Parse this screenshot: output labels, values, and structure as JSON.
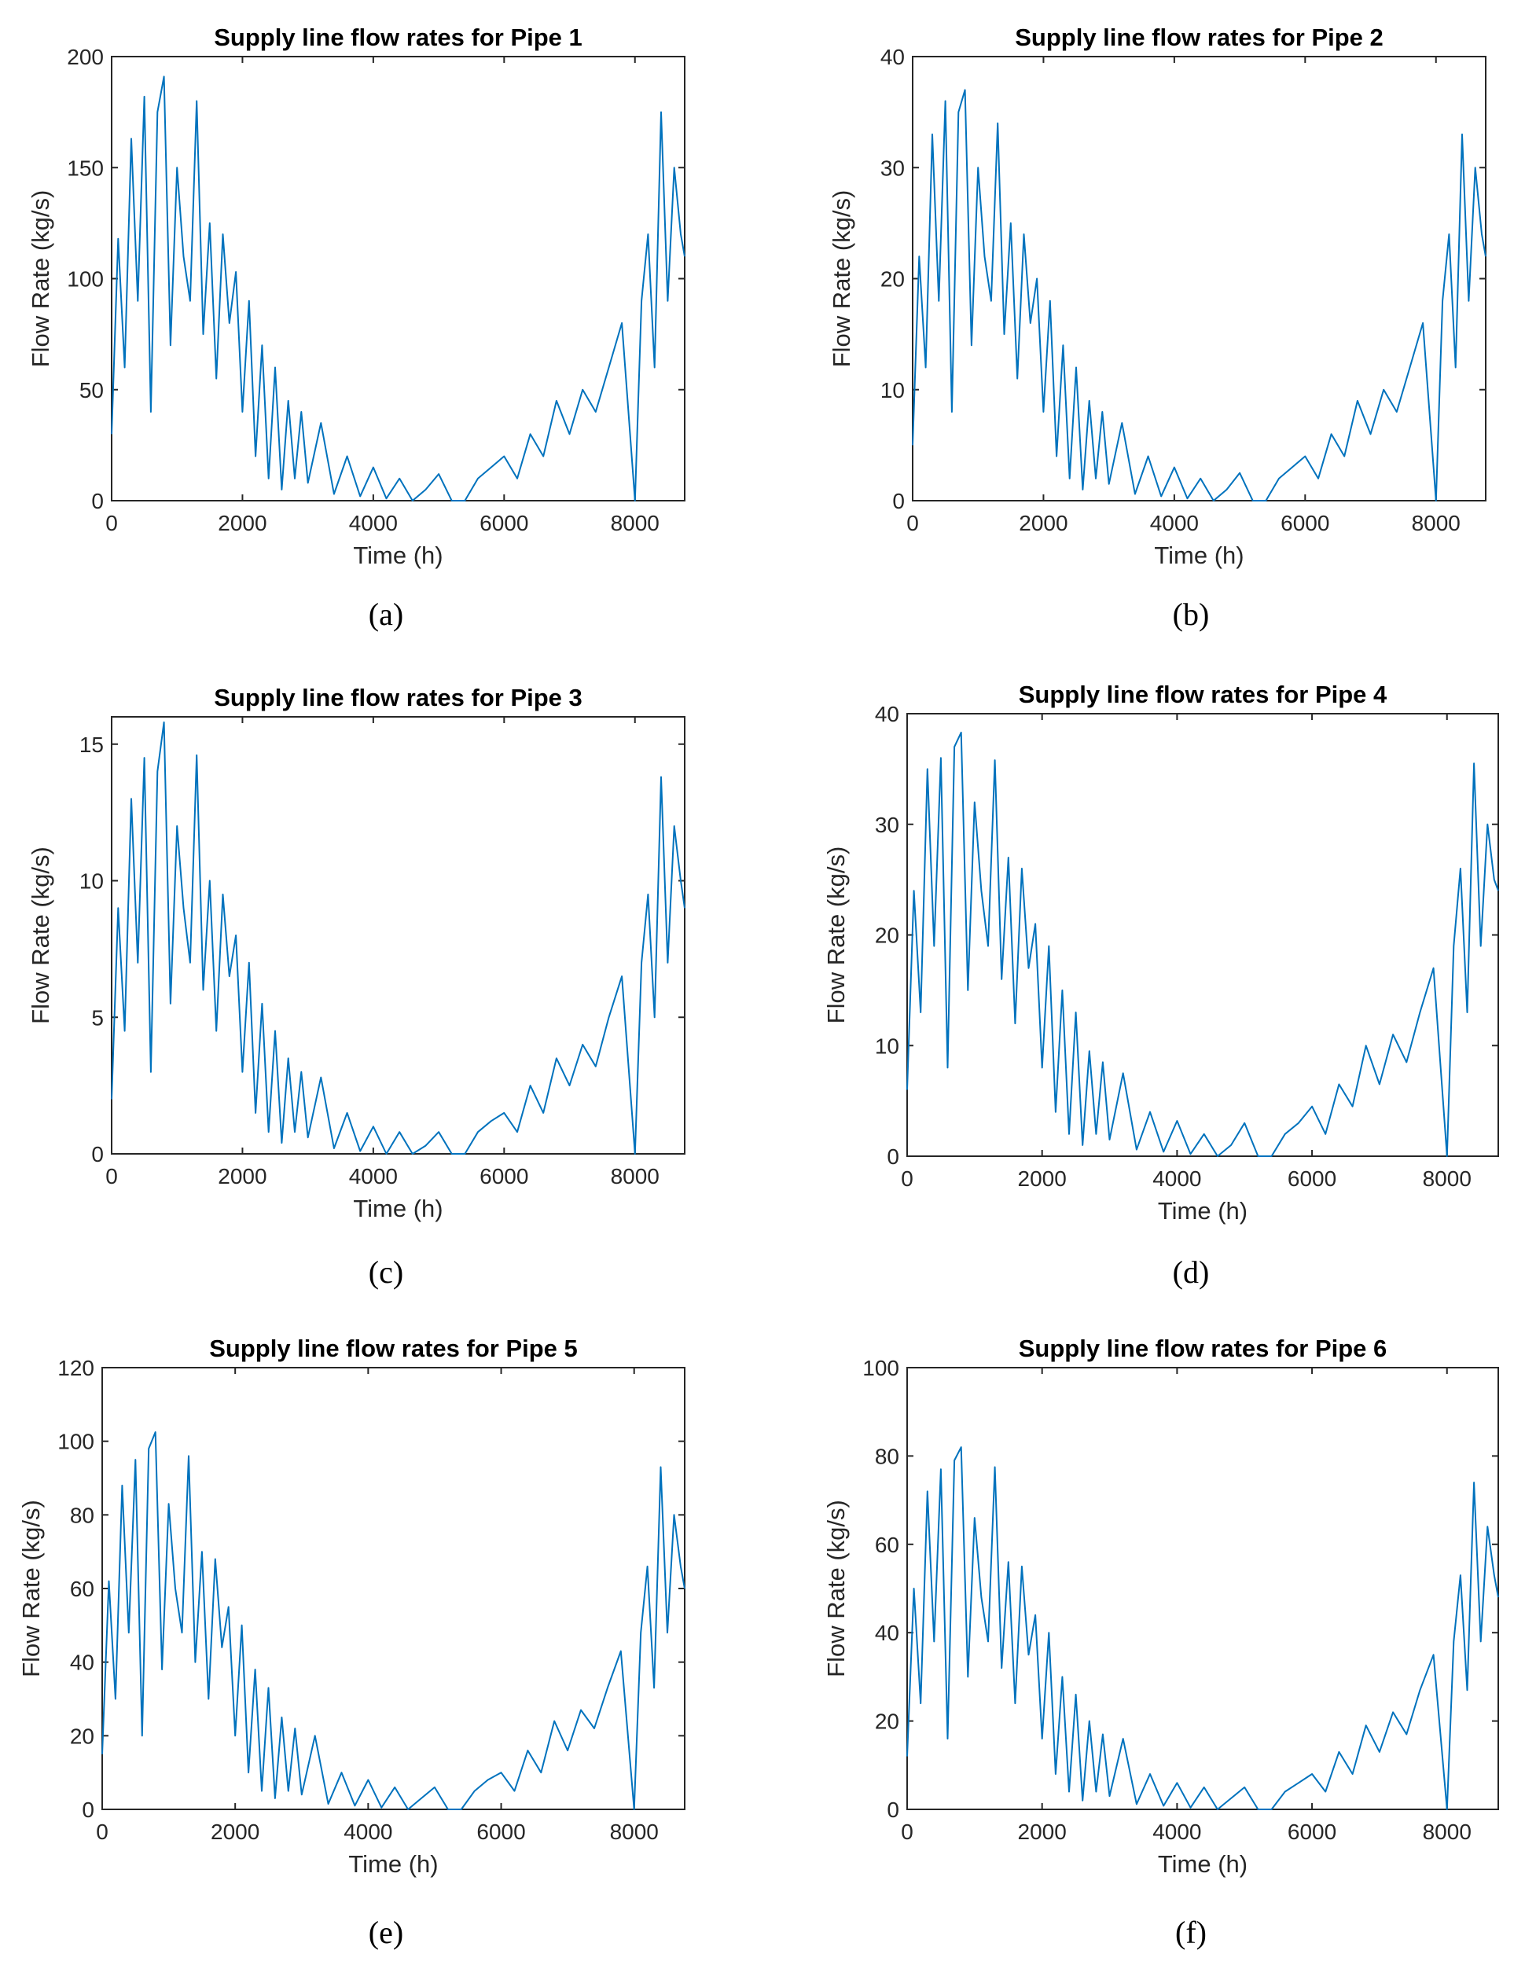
{
  "figure": {
    "captions": [
      "(a)",
      "(b)",
      "(c)",
      "(d)",
      "(e)",
      "(f)"
    ]
  },
  "chart_data": [
    {
      "type": "line",
      "title": "Supply line flow rates for Pipe 1",
      "xlabel": "Time (h)",
      "ylabel": "Flow Rate (kg/s)",
      "xlim": [
        0,
        8760
      ],
      "ylim": [
        0,
        200
      ],
      "xticks": [
        0,
        2000,
        4000,
        6000,
        8000
      ],
      "yticks": [
        0,
        50,
        100,
        150,
        200
      ],
      "series_color": "#0072BD",
      "series": [
        {
          "name": "Pipe 1",
          "x": [
            0,
            100,
            200,
            300,
            400,
            500,
            600,
            700,
            800,
            900,
            1000,
            1100,
            1200,
            1300,
            1400,
            1500,
            1600,
            1700,
            1800,
            1900,
            2000,
            2100,
            2200,
            2300,
            2400,
            2500,
            2600,
            2700,
            2800,
            2900,
            3000,
            3200,
            3400,
            3600,
            3800,
            4000,
            4200,
            4400,
            4600,
            4800,
            5000,
            5200,
            5400,
            5600,
            5800,
            6000,
            6200,
            6400,
            6600,
            6800,
            7000,
            7200,
            7400,
            7600,
            7800,
            8000,
            8100,
            8200,
            8300,
            8400,
            8500,
            8600,
            8700,
            8760
          ],
          "values": [
            30,
            118,
            60,
            163,
            90,
            182,
            40,
            175,
            191,
            70,
            150,
            110,
            90,
            180,
            75,
            125,
            55,
            120,
            80,
            103,
            40,
            90,
            20,
            70,
            10,
            60,
            5,
            45,
            10,
            40,
            8,
            35,
            3,
            20,
            2,
            15,
            1,
            10,
            0,
            5,
            12,
            0,
            0,
            10,
            15,
            20,
            10,
            30,
            20,
            45,
            30,
            50,
            40,
            60,
            80,
            0,
            90,
            120,
            60,
            175,
            90,
            150,
            120,
            110
          ]
        }
      ]
    },
    {
      "type": "line",
      "title": "Supply line flow rates for Pipe 2",
      "xlabel": "Time (h)",
      "ylabel": "Flow Rate (kg/s)",
      "xlim": [
        0,
        8760
      ],
      "ylim": [
        0,
        40
      ],
      "xticks": [
        0,
        2000,
        4000,
        6000,
        8000
      ],
      "yticks": [
        0,
        10,
        20,
        30,
        40
      ],
      "series_color": "#0072BD",
      "series": [
        {
          "name": "Pipe 2",
          "x": [
            0,
            100,
            200,
            300,
            400,
            500,
            600,
            700,
            800,
            900,
            1000,
            1100,
            1200,
            1300,
            1400,
            1500,
            1600,
            1700,
            1800,
            1900,
            2000,
            2100,
            2200,
            2300,
            2400,
            2500,
            2600,
            2700,
            2800,
            2900,
            3000,
            3200,
            3400,
            3600,
            3800,
            4000,
            4200,
            4400,
            4600,
            4800,
            5000,
            5200,
            5400,
            5600,
            5800,
            6000,
            6200,
            6400,
            6600,
            6800,
            7000,
            7200,
            7400,
            7600,
            7800,
            8000,
            8100,
            8200,
            8300,
            8400,
            8500,
            8600,
            8700,
            8760
          ],
          "values": [
            5,
            22,
            12,
            33,
            18,
            36,
            8,
            35,
            37,
            14,
            30,
            22,
            18,
            34,
            15,
            25,
            11,
            24,
            16,
            20,
            8,
            18,
            4,
            14,
            2,
            12,
            1,
            9,
            2,
            8,
            1.5,
            7,
            0.6,
            4,
            0.4,
            3,
            0.2,
            2,
            0,
            1,
            2.5,
            0,
            0,
            2,
            3,
            4,
            2,
            6,
            4,
            9,
            6,
            10,
            8,
            12,
            16,
            0,
            18,
            24,
            12,
            33,
            18,
            30,
            24,
            22
          ]
        }
      ]
    },
    {
      "type": "line",
      "title": "Supply line flow rates for Pipe 3",
      "xlabel": "Time (h)",
      "ylabel": "Flow Rate (kg/s)",
      "xlim": [
        0,
        8760
      ],
      "ylim": [
        0,
        16
      ],
      "xticks": [
        0,
        2000,
        4000,
        6000,
        8000
      ],
      "yticks": [
        0,
        5,
        10,
        15
      ],
      "series_color": "#0072BD",
      "series": [
        {
          "name": "Pipe 3",
          "x": [
            0,
            100,
            200,
            300,
            400,
            500,
            600,
            700,
            800,
            900,
            1000,
            1100,
            1200,
            1300,
            1400,
            1500,
            1600,
            1700,
            1800,
            1900,
            2000,
            2100,
            2200,
            2300,
            2400,
            2500,
            2600,
            2700,
            2800,
            2900,
            3000,
            3200,
            3400,
            3600,
            3800,
            4000,
            4200,
            4400,
            4600,
            4800,
            5000,
            5200,
            5400,
            5600,
            5800,
            6000,
            6200,
            6400,
            6600,
            6800,
            7000,
            7200,
            7400,
            7600,
            7800,
            8000,
            8100,
            8200,
            8300,
            8400,
            8500,
            8600,
            8700,
            8760
          ],
          "values": [
            2,
            9,
            4.5,
            13,
            7,
            14.5,
            3,
            14,
            15.8,
            5.5,
            12,
            9,
            7,
            14.6,
            6,
            10,
            4.5,
            9.5,
            6.5,
            8,
            3,
            7,
            1.5,
            5.5,
            0.8,
            4.5,
            0.4,
            3.5,
            0.8,
            3,
            0.6,
            2.8,
            0.2,
            1.5,
            0.1,
            1,
            0,
            0.8,
            0,
            0.3,
            0.8,
            0,
            0,
            0.8,
            1.2,
            1.5,
            0.8,
            2.5,
            1.5,
            3.5,
            2.5,
            4,
            3.2,
            5,
            6.5,
            0,
            7,
            9.5,
            5,
            13.8,
            7,
            12,
            10,
            9
          ]
        }
      ]
    },
    {
      "type": "line",
      "title": "Supply line flow rates for Pipe 4",
      "xlabel": "Time (h)",
      "ylabel": "Flow Rate (kg/s)",
      "xlim": [
        0,
        8760
      ],
      "ylim": [
        0,
        40
      ],
      "xticks": [
        0,
        2000,
        4000,
        6000,
        8000
      ],
      "yticks": [
        0,
        10,
        20,
        30,
        40
      ],
      "series_color": "#0072BD",
      "series": [
        {
          "name": "Pipe 4",
          "x": [
            0,
            100,
            200,
            300,
            400,
            500,
            600,
            700,
            800,
            900,
            1000,
            1100,
            1200,
            1300,
            1400,
            1500,
            1600,
            1700,
            1800,
            1900,
            2000,
            2100,
            2200,
            2300,
            2400,
            2500,
            2600,
            2700,
            2800,
            2900,
            3000,
            3200,
            3400,
            3600,
            3800,
            4000,
            4200,
            4400,
            4600,
            4800,
            5000,
            5200,
            5400,
            5600,
            5800,
            6000,
            6200,
            6400,
            6600,
            6800,
            7000,
            7200,
            7400,
            7600,
            7800,
            8000,
            8100,
            8200,
            8300,
            8400,
            8500,
            8600,
            8700,
            8760
          ],
          "values": [
            6,
            24,
            13,
            35,
            19,
            36,
            8,
            37,
            38.3,
            15,
            32,
            24,
            19,
            35.8,
            16,
            27,
            12,
            26,
            17,
            21,
            8,
            19,
            4,
            15,
            2,
            13,
            1,
            9.5,
            2,
            8.5,
            1.5,
            7.5,
            0.6,
            4,
            0.4,
            3.2,
            0.2,
            2,
            0,
            1,
            3,
            0,
            0,
            2,
            3,
            4.5,
            2,
            6.5,
            4.5,
            10,
            6.5,
            11,
            8.5,
            13,
            17,
            0,
            19,
            26,
            13,
            35.5,
            19,
            30,
            25,
            24
          ]
        }
      ]
    },
    {
      "type": "line",
      "title": "Supply line flow rates for Pipe 5",
      "xlabel": "Time (h)",
      "ylabel": "Flow Rate (kg/s)",
      "xlim": [
        0,
        8760
      ],
      "ylim": [
        0,
        120
      ],
      "xticks": [
        0,
        2000,
        4000,
        6000,
        8000
      ],
      "yticks": [
        0,
        20,
        40,
        60,
        80,
        100,
        120
      ],
      "series_color": "#0072BD",
      "series": [
        {
          "name": "Pipe 5",
          "x": [
            0,
            100,
            200,
            300,
            400,
            500,
            600,
            700,
            800,
            900,
            1000,
            1100,
            1200,
            1300,
            1400,
            1500,
            1600,
            1700,
            1800,
            1900,
            2000,
            2100,
            2200,
            2300,
            2400,
            2500,
            2600,
            2700,
            2800,
            2900,
            3000,
            3200,
            3400,
            3600,
            3800,
            4000,
            4200,
            4400,
            4600,
            4800,
            5000,
            5200,
            5400,
            5600,
            5800,
            6000,
            6200,
            6400,
            6600,
            6800,
            7000,
            7200,
            7400,
            7600,
            7800,
            8000,
            8100,
            8200,
            8300,
            8400,
            8500,
            8600,
            8700,
            8760
          ],
          "values": [
            15,
            62,
            30,
            88,
            48,
            95,
            20,
            98,
            102.5,
            38,
            83,
            60,
            48,
            96,
            40,
            70,
            30,
            68,
            44,
            55,
            20,
            50,
            10,
            38,
            5,
            33,
            3,
            25,
            5,
            22,
            4,
            20,
            1.5,
            10,
            1,
            8,
            0.5,
            6,
            0,
            3,
            6,
            0,
            0,
            5,
            8,
            10,
            5,
            16,
            10,
            24,
            16,
            27,
            22,
            33,
            43,
            0,
            48,
            66,
            33,
            93,
            48,
            80,
            66,
            60
          ]
        }
      ]
    },
    {
      "type": "line",
      "title": "Supply line flow rates for Pipe 6",
      "xlabel": "Time (h)",
      "ylabel": "Flow Rate (kg/s)",
      "xlim": [
        0,
        8760
      ],
      "ylim": [
        0,
        100
      ],
      "xticks": [
        0,
        2000,
        4000,
        6000,
        8000
      ],
      "yticks": [
        0,
        20,
        40,
        60,
        80,
        100
      ],
      "series_color": "#0072BD",
      "series": [
        {
          "name": "Pipe 6",
          "x": [
            0,
            100,
            200,
            300,
            400,
            500,
            600,
            700,
            800,
            900,
            1000,
            1100,
            1200,
            1300,
            1400,
            1500,
            1600,
            1700,
            1800,
            1900,
            2000,
            2100,
            2200,
            2300,
            2400,
            2500,
            2600,
            2700,
            2800,
            2900,
            3000,
            3200,
            3400,
            3600,
            3800,
            4000,
            4200,
            4400,
            4600,
            4800,
            5000,
            5200,
            5400,
            5600,
            5800,
            6000,
            6200,
            6400,
            6600,
            6800,
            7000,
            7200,
            7400,
            7600,
            7800,
            8000,
            8100,
            8200,
            8300,
            8400,
            8500,
            8600,
            8700,
            8760
          ],
          "values": [
            12,
            50,
            24,
            72,
            38,
            77,
            16,
            79,
            82,
            30,
            66,
            48,
            38,
            77.5,
            32,
            56,
            24,
            55,
            35,
            44,
            16,
            40,
            8,
            30,
            4,
            26,
            2,
            20,
            4,
            17,
            3,
            16,
            1.2,
            8,
            0.8,
            6,
            0.4,
            5,
            0,
            2.5,
            5,
            0,
            0,
            4,
            6,
            8,
            4,
            13,
            8,
            19,
            13,
            22,
            17,
            27,
            35,
            0,
            38,
            53,
            27,
            74,
            38,
            64,
            53,
            48
          ]
        }
      ]
    }
  ]
}
